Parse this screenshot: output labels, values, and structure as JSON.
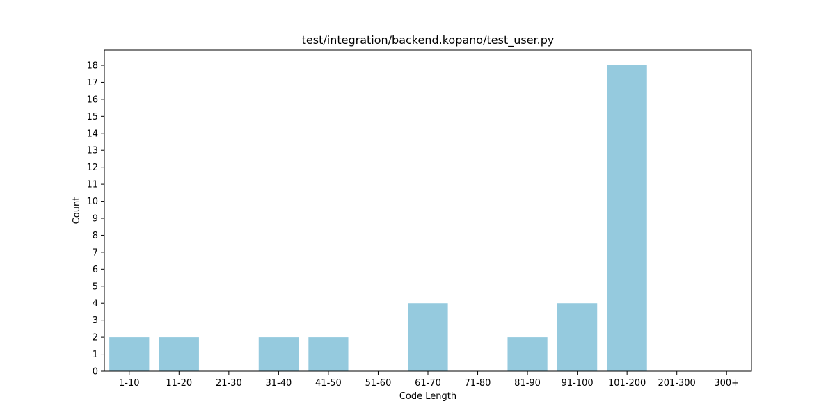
{
  "chart_data": {
    "type": "bar",
    "title": "test/integration/backend.kopano/test_user.py",
    "xlabel": "Code Length",
    "ylabel": "Count",
    "categories": [
      "1-10",
      "11-20",
      "21-30",
      "31-40",
      "41-50",
      "51-60",
      "61-70",
      "71-80",
      "81-90",
      "91-100",
      "101-200",
      "201-300",
      "300+"
    ],
    "values": [
      2,
      2,
      0,
      2,
      2,
      0,
      4,
      0,
      2,
      4,
      18,
      0,
      0
    ],
    "ylim": [
      0,
      18.9
    ],
    "yticks": [
      0,
      1,
      2,
      3,
      4,
      5,
      6,
      7,
      8,
      9,
      10,
      11,
      12,
      13,
      14,
      15,
      16,
      17,
      18
    ],
    "bar_color": "#95cade",
    "grid": false,
    "legend": "none"
  }
}
